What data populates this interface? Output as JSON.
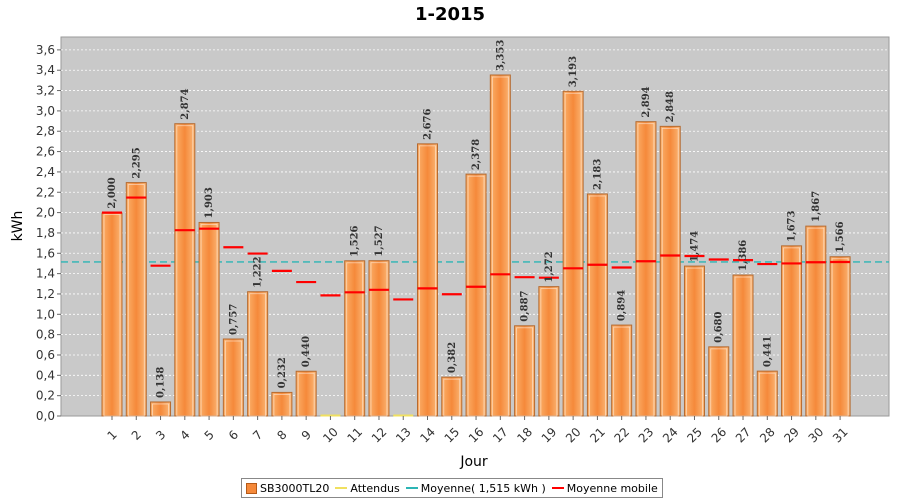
{
  "chart_data": {
    "type": "bar",
    "title": "1-2015",
    "xlabel": "Jour",
    "ylabel": "kWh",
    "ylim": [
      0,
      3.7
    ],
    "y_ticks": [
      "0,0",
      "0,2",
      "0,4",
      "0,6",
      "0,8",
      "1,0",
      "1,2",
      "1,4",
      "1,6",
      "1,8",
      "2,0",
      "2,2",
      "2,4",
      "2,6",
      "2,8",
      "3,0",
      "3,2",
      "3,4",
      "3,6"
    ],
    "grid": true,
    "categories": [
      "1",
      "2",
      "3",
      "4",
      "5",
      "6",
      "7",
      "8",
      "9",
      "10",
      "11",
      "12",
      "13",
      "14",
      "15",
      "16",
      "17",
      "18",
      "19",
      "20",
      "21",
      "22",
      "23",
      "24",
      "25",
      "26",
      "27",
      "28",
      "29",
      "30",
      "31"
    ],
    "series": [
      {
        "name": "SB3000TL20",
        "type": "bar",
        "color": "#f5893a",
        "values": [
          2.0,
          2.295,
          0.138,
          2.874,
          1.903,
          0.757,
          1.222,
          0.232,
          0.44,
          0.0,
          1.526,
          1.527,
          0.0,
          2.676,
          0.382,
          2.378,
          3.353,
          0.887,
          1.272,
          3.193,
          2.183,
          0.894,
          2.894,
          2.848,
          1.474,
          0.68,
          1.386,
          0.441,
          1.673,
          1.867,
          1.566
        ],
        "labels": [
          "2,000",
          "2,295",
          "0,138",
          "2,874",
          "1,903",
          "0,757",
          "1,222",
          "0,232",
          "0,440",
          "",
          "1,526",
          "1,527",
          "",
          "2,676",
          "0,382",
          "2,378",
          "3,353",
          "0,887",
          "1,272",
          "3,193",
          "2,183",
          "0,894",
          "2,894",
          "2,848",
          "1,474",
          "0,680",
          "1,386",
          "0,441",
          "1,673",
          "1,867",
          "1,566"
        ]
      },
      {
        "name": "Attendus",
        "type": "line",
        "color": "#f0e060",
        "values": [
          0,
          0,
          0,
          0,
          0,
          0,
          0,
          0,
          0,
          0,
          0,
          0,
          0,
          0,
          0,
          0,
          0,
          0,
          0,
          0,
          0,
          0,
          0,
          0,
          0,
          0,
          0,
          0,
          0,
          0,
          0
        ]
      },
      {
        "name": "Moyenne( 1,515 kWh )",
        "type": "reference-line",
        "color": "#2cb5b5",
        "value": 1.515
      },
      {
        "name": "Moyenne mobile",
        "type": "step",
        "color": "#ff0000",
        "values": [
          2.0,
          2.148,
          1.478,
          1.827,
          1.842,
          1.659,
          1.597,
          1.427,
          1.317,
          1.186,
          1.216,
          1.241,
          1.146,
          1.255,
          1.197,
          1.271,
          1.393,
          1.365,
          1.36,
          1.452,
          1.487,
          1.46,
          1.522,
          1.578,
          1.573,
          1.539,
          1.533,
          1.494,
          1.5,
          1.512,
          1.514
        ]
      }
    ],
    "legend_position": "bottom-center"
  }
}
